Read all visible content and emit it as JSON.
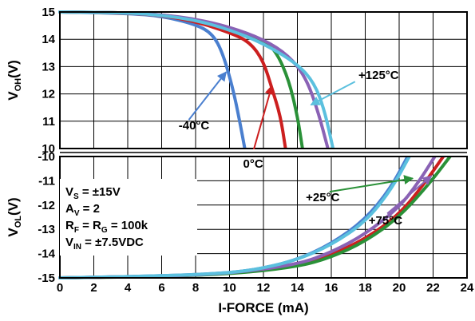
{
  "chart_data": {
    "type": "line",
    "xlabel": "I-FORCE (mA)",
    "xlim": [
      0,
      24
    ],
    "x_ticks": [
      "0",
      "2",
      "4",
      "6",
      "8",
      "10",
      "12",
      "14",
      "16",
      "18",
      "20",
      "22",
      "24"
    ],
    "grid": true,
    "top_panel": {
      "ylabel_main": "V",
      "ylabel_sub": "OH",
      "ylabel_unit": "(V)",
      "ylim": [
        10,
        15
      ],
      "y_ticks": [
        "10",
        "11",
        "12",
        "13",
        "14",
        "15"
      ],
      "series": [
        {
          "name": "-40°C",
          "color": "#4a7fcf",
          "points": [
            [
              0,
              15
            ],
            [
              4,
              14.95
            ],
            [
              6,
              14.85
            ],
            [
              8,
              14.55
            ],
            [
              9,
              14.2
            ],
            [
              9.6,
              13.5
            ],
            [
              10.2,
              12.2
            ],
            [
              10.6,
              11
            ],
            [
              10.9,
              10
            ]
          ]
        },
        {
          "name": "0°C",
          "color": "#cc1f1f",
          "points": [
            [
              0,
              15
            ],
            [
              4,
              14.96
            ],
            [
              6,
              14.88
            ],
            [
              8,
              14.65
            ],
            [
              10,
              14.25
            ],
            [
              11.2,
              13.9
            ],
            [
              12,
              13.2
            ],
            [
              12.5,
              12.2
            ],
            [
              13,
              11.2
            ],
            [
              13.3,
              10
            ]
          ]
        },
        {
          "name": "+25°C",
          "color": "#2a9138",
          "points": [
            [
              0,
              15
            ],
            [
              4,
              14.97
            ],
            [
              6,
              14.9
            ],
            [
              8,
              14.72
            ],
            [
              10,
              14.4
            ],
            [
              12,
              14
            ],
            [
              12.8,
              13.5
            ],
            [
              13.5,
              12.5
            ],
            [
              14,
              11.2
            ],
            [
              14.3,
              10
            ]
          ]
        },
        {
          "name": "+75°C",
          "color": "#8a62b5",
          "points": [
            [
              0,
              15
            ],
            [
              4,
              14.97
            ],
            [
              6,
              14.9
            ],
            [
              8,
              14.74
            ],
            [
              10,
              14.45
            ],
            [
              12,
              14
            ],
            [
              13.5,
              13.4
            ],
            [
              14.5,
              12.6
            ],
            [
              15.2,
              11.4
            ],
            [
              15.8,
              10
            ]
          ]
        },
        {
          "name": "+125°C",
          "color": "#5bc0de",
          "points": [
            [
              0,
              15
            ],
            [
              4,
              14.97
            ],
            [
              6,
              14.88
            ],
            [
              8,
              14.7
            ],
            [
              10,
              14.35
            ],
            [
              12,
              13.85
            ],
            [
              14,
              13.1
            ],
            [
              15,
              12.4
            ],
            [
              15.6,
              11.4
            ],
            [
              16.1,
              10
            ]
          ]
        }
      ],
      "annotations": [
        {
          "text": "-40°C",
          "series": "-40°C",
          "label_at": [
            7,
            10.7
          ],
          "arrow_from": [
            7.6,
            11.05
          ],
          "arrow_to": [
            9.8,
            12.8
          ]
        },
        {
          "text": "0°C",
          "series": "0°C",
          "label_at": [
            10.8,
            9.3
          ],
          "arrow_from": [
            11.4,
            9.9
          ],
          "arrow_to": [
            12.5,
            12.3
          ]
        },
        {
          "text": "+125°C",
          "series": "+125°C",
          "label_at": [
            17.6,
            12.55
          ],
          "arrow_from": [
            17.4,
            12.45
          ],
          "arrow_to": [
            14.8,
            11.6
          ]
        }
      ]
    },
    "bottom_panel": {
      "ylabel_main": "V",
      "ylabel_sub": "OL",
      "ylabel_unit": "(V)",
      "ylim": [
        -15,
        -10
      ],
      "y_ticks": [
        "-10",
        "-11",
        "-12",
        "-13",
        "-14",
        "-15"
      ],
      "series": [
        {
          "name": "-40°C",
          "color": "#4a7fcf",
          "points": [
            [
              0,
              -15
            ],
            [
              6,
              -14.92
            ],
            [
              10,
              -14.8
            ],
            [
              12,
              -14.6
            ],
            [
              14,
              -14.25
            ],
            [
              16,
              -13.6
            ],
            [
              18,
              -12.6
            ],
            [
              19.5,
              -11.3
            ],
            [
              20.5,
              -10
            ]
          ]
        },
        {
          "name": "0°C",
          "color": "#cc1f1f",
          "points": [
            [
              0,
              -15
            ],
            [
              6,
              -14.93
            ],
            [
              10,
              -14.82
            ],
            [
              14,
              -14.5
            ],
            [
              16,
              -14.05
            ],
            [
              18,
              -13.4
            ],
            [
              20,
              -12.4
            ],
            [
              21.5,
              -11.1
            ],
            [
              22.6,
              -10
            ]
          ]
        },
        {
          "name": "+25°C",
          "color": "#2a9138",
          "points": [
            [
              0,
              -15
            ],
            [
              6,
              -14.94
            ],
            [
              10,
              -14.84
            ],
            [
              14,
              -14.55
            ],
            [
              16,
              -14.15
            ],
            [
              18,
              -13.5
            ],
            [
              20,
              -12.5
            ],
            [
              21.8,
              -11.1
            ],
            [
              23,
              -10
            ]
          ]
        },
        {
          "name": "+75°C",
          "color": "#8a62b5",
          "points": [
            [
              0,
              -15
            ],
            [
              6,
              -14.93
            ],
            [
              10,
              -14.82
            ],
            [
              14,
              -14.45
            ],
            [
              16,
              -13.95
            ],
            [
              18,
              -13.2
            ],
            [
              20,
              -12.1
            ],
            [
              21.2,
              -11
            ],
            [
              22.1,
              -10
            ]
          ]
        },
        {
          "name": "+125°C",
          "color": "#5bc0de",
          "points": [
            [
              0,
              -15
            ],
            [
              6,
              -14.92
            ],
            [
              10,
              -14.8
            ],
            [
              12,
              -14.6
            ],
            [
              14,
              -14.25
            ],
            [
              16,
              -13.65
            ],
            [
              18,
              -12.7
            ],
            [
              19.5,
              -11.4
            ],
            [
              20.6,
              -10
            ]
          ]
        }
      ],
      "annotations": [
        {
          "text": "+25°C",
          "series": "+25°C",
          "label_at": [
            14.5,
            -11.85
          ],
          "arrow_from": [
            15.9,
            -11.45
          ],
          "arrow_to": [
            20.8,
            -10.9
          ]
        },
        {
          "text": "+75°C",
          "series": "+75°C",
          "label_at": [
            18.2,
            -12.8
          ],
          "arrow_from": [
            19.3,
            -12.35
          ],
          "arrow_to": [
            21.9,
            -10.8
          ]
        }
      ],
      "conditions": [
        "V|S| = ±15V",
        "A|V| = 2",
        "R|F| = R|G| = 100k",
        "V|IN| = ±7.5VDC"
      ]
    }
  }
}
